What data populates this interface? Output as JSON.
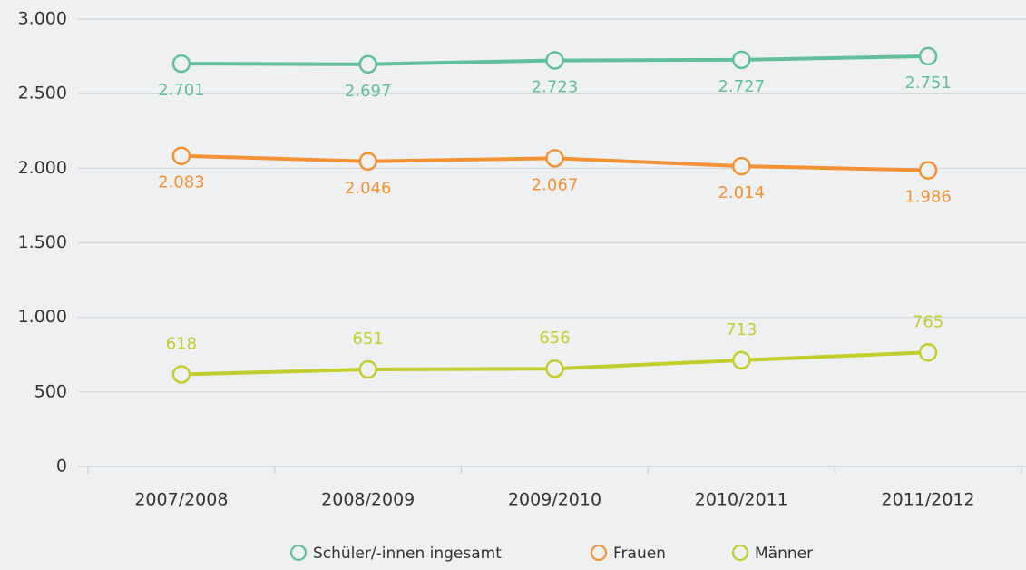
{
  "chart_data": {
    "type": "line",
    "categories": [
      "2007/2008",
      "2008/2009",
      "2009/2010",
      "2010/2011",
      "2011/2012"
    ],
    "series": [
      {
        "name": "Schüler/-innen ingesamt",
        "color": "#62bf9c",
        "values": [
          2701,
          2697,
          2723,
          2727,
          2751
        ],
        "value_labels": [
          "2.701",
          "2.697",
          "2.723",
          "2.727",
          "2.751"
        ]
      },
      {
        "name": "Frauen",
        "color": "#f39234",
        "values": [
          2083,
          2046,
          2067,
          2014,
          1986
        ],
        "value_labels": [
          "2.083",
          "2.046",
          "2.067",
          "2.014",
          "1.986"
        ]
      },
      {
        "name": "Männer",
        "color": "#c3cd2c",
        "values": [
          618,
          651,
          656,
          713,
          765
        ]
      }
    ],
    "ylim": [
      0,
      3000
    ],
    "yticks": [
      0,
      500,
      {
        "value": 1000,
        "label": "1.000"
      },
      {
        "value": 1500,
        "label": "1.500"
      },
      {
        "value": 2000,
        "label": "2.000"
      },
      {
        "value": 2500,
        "label": "2.500"
      },
      {
        "value": 3000,
        "label": "3.000"
      }
    ],
    "grid": true,
    "legend": "bottom"
  }
}
